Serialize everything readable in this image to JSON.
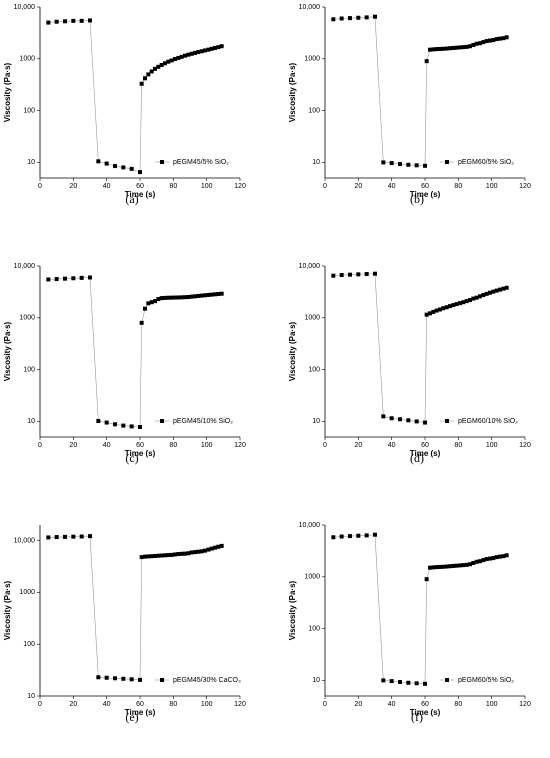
{
  "chart_data": [
    {
      "type": "scatter",
      "caption": "(a)",
      "xlabel": "Time (s)",
      "ylabel": "Viscosity (Pa·s)",
      "yscale": "log",
      "legend": "lower right",
      "xlim": [
        0,
        120
      ],
      "xticks": [
        0,
        20,
        40,
        60,
        80,
        100,
        120
      ],
      "ylim": [
        5,
        10000
      ],
      "yticks": [
        10,
        100,
        1000,
        {
          "value": 10000,
          "label": "10,000"
        }
      ],
      "x": [
        5,
        10,
        15,
        20,
        25,
        30,
        35,
        40,
        45,
        50,
        55,
        60,
        61,
        63,
        65,
        67,
        69,
        71,
        73,
        75,
        77,
        79,
        81,
        83,
        85,
        87,
        89,
        91,
        93,
        95,
        97,
        99,
        101,
        103,
        105,
        107,
        109
      ],
      "series": [
        {
          "name": "pEGM45/5% SiO₂",
          "color": "#000000",
          "values": [
            5000,
            5200,
            5300,
            5400,
            5400,
            5500,
            10.5,
            9.5,
            8.5,
            8,
            7.5,
            6.5,
            330,
            420,
            500,
            570,
            640,
            700,
            760,
            820,
            880,
            930,
            990,
            1040,
            1090,
            1150,
            1200,
            1250,
            1300,
            1350,
            1400,
            1450,
            1500,
            1560,
            1620,
            1680,
            1750
          ]
        }
      ]
    },
    {
      "type": "scatter",
      "caption": "(b)",
      "xlabel": "Time (s)",
      "ylabel": "Viscosity (Pa·s)",
      "yscale": "log",
      "legend": "lower right",
      "xlim": [
        0,
        120
      ],
      "xticks": [
        0,
        20,
        40,
        60,
        80,
        100,
        120
      ],
      "ylim": [
        5,
        10000
      ],
      "yticks": [
        10,
        100,
        1000,
        {
          "value": 10000,
          "label": "10,000"
        }
      ],
      "x": [
        5,
        10,
        15,
        20,
        25,
        30,
        35,
        40,
        45,
        50,
        55,
        60,
        61,
        63,
        65,
        67,
        69,
        71,
        73,
        75,
        77,
        79,
        81,
        83,
        85,
        87,
        89,
        91,
        93,
        95,
        97,
        99,
        101,
        103,
        105,
        107,
        109
      ],
      "series": [
        {
          "name": "pEGM60/5% SiO₂",
          "color": "#000000",
          "values": [
            5800,
            6000,
            6100,
            6200,
            6300,
            6500,
            10,
            9.7,
            9.3,
            9,
            8.8,
            8.6,
            900,
            1500,
            1520,
            1540,
            1550,
            1560,
            1580,
            1600,
            1620,
            1640,
            1660,
            1680,
            1700,
            1750,
            1850,
            1950,
            2000,
            2100,
            2200,
            2250,
            2300,
            2400,
            2450,
            2500,
            2600
          ]
        }
      ]
    },
    {
      "type": "scatter",
      "caption": "(c)",
      "xlabel": "Time (s)",
      "ylabel": "Viscosity (Pa·s)",
      "yscale": "log",
      "legend": "lower right",
      "xlim": [
        0,
        120
      ],
      "xticks": [
        0,
        20,
        40,
        60,
        80,
        100,
        120
      ],
      "ylim": [
        5,
        10000
      ],
      "yticks": [
        10,
        100,
        1000,
        {
          "value": 10000,
          "label": "10,000"
        }
      ],
      "x": [
        5,
        10,
        15,
        20,
        25,
        30,
        35,
        40,
        45,
        50,
        55,
        60,
        61,
        63,
        65,
        67,
        69,
        71,
        73,
        75,
        77,
        79,
        81,
        83,
        85,
        87,
        89,
        91,
        93,
        95,
        97,
        99,
        101,
        103,
        105,
        107,
        109
      ],
      "series": [
        {
          "name": "pEGM45/10% SiO₂",
          "color": "#000000",
          "values": [
            5500,
            5600,
            5700,
            5800,
            5900,
            6000,
            10.2,
            9.5,
            8.8,
            8.3,
            8,
            7.8,
            800,
            1500,
            1900,
            2000,
            2100,
            2300,
            2400,
            2420,
            2440,
            2450,
            2460,
            2470,
            2480,
            2500,
            2520,
            2560,
            2600,
            2640,
            2680,
            2720,
            2760,
            2800,
            2840,
            2880,
            2920
          ]
        }
      ]
    },
    {
      "type": "scatter",
      "caption": "(d)",
      "xlabel": "Time (s)",
      "ylabel": "Viscosity (Pa·s)",
      "yscale": "log",
      "legend": "lower right",
      "xlim": [
        0,
        120
      ],
      "xticks": [
        0,
        20,
        40,
        60,
        80,
        100,
        120
      ],
      "ylim": [
        5,
        10000
      ],
      "yticks": [
        10,
        100,
        1000,
        {
          "value": 10000,
          "label": "10,000"
        }
      ],
      "x": [
        5,
        10,
        15,
        20,
        25,
        30,
        35,
        40,
        45,
        50,
        55,
        60,
        61,
        63,
        65,
        67,
        69,
        71,
        73,
        75,
        77,
        79,
        81,
        83,
        85,
        87,
        89,
        91,
        93,
        95,
        97,
        99,
        101,
        103,
        105,
        107,
        109
      ],
      "series": [
        {
          "name": "pEGM60/10% SiO₂",
          "color": "#000000",
          "values": [
            6500,
            6700,
            6800,
            6900,
            7000,
            7100,
            12.5,
            11.5,
            11,
            10.5,
            10,
            9.5,
            1150,
            1220,
            1300,
            1380,
            1450,
            1530,
            1600,
            1680,
            1760,
            1840,
            1920,
            2000,
            2100,
            2200,
            2350,
            2450,
            2600,
            2750,
            2900,
            3050,
            3200,
            3350,
            3500,
            3650,
            3800
          ]
        }
      ]
    },
    {
      "type": "scatter",
      "caption": "(e)",
      "xlabel": "Time (s)",
      "ylabel": "Viscosity (Pa·s)",
      "yscale": "log",
      "legend": "lower right",
      "xlim": [
        0,
        120
      ],
      "xticks": [
        0,
        20,
        40,
        60,
        80,
        100,
        120
      ],
      "ylim": [
        10,
        20000
      ],
      "yticks": [
        10,
        100,
        1000,
        {
          "value": 10000,
          "label": "10,000"
        }
      ],
      "x": [
        5,
        10,
        15,
        20,
        25,
        30,
        35,
        40,
        45,
        50,
        55,
        60,
        61,
        63,
        65,
        67,
        69,
        71,
        73,
        75,
        77,
        79,
        81,
        83,
        85,
        87,
        89,
        91,
        93,
        95,
        97,
        99,
        101,
        103,
        105,
        107,
        109
      ],
      "series": [
        {
          "name": "pEGM45/30% CaCO₃",
          "color": "#000000",
          "values": [
            11500,
            11700,
            11800,
            11900,
            12000,
            12200,
            23,
            22.5,
            22,
            21.5,
            21,
            20.5,
            4800,
            4900,
            4950,
            5000,
            5050,
            5100,
            5150,
            5200,
            5250,
            5300,
            5400,
            5500,
            5550,
            5600,
            5700,
            5900,
            6000,
            6100,
            6200,
            6400,
            6700,
            7000,
            7300,
            7600,
            7900
          ]
        }
      ]
    },
    {
      "type": "scatter",
      "caption": "(f)",
      "xlabel": "Time (s)",
      "ylabel": "Viscosity (Pa·s)",
      "yscale": "log",
      "legend": "lower right",
      "xlim": [
        0,
        120
      ],
      "xticks": [
        0,
        20,
        40,
        60,
        80,
        100,
        120
      ],
      "ylim": [
        5,
        10000
      ],
      "yticks": [
        10,
        100,
        1000,
        {
          "value": 10000,
          "label": "10,000"
        }
      ],
      "x": [
        5,
        10,
        15,
        20,
        25,
        30,
        35,
        40,
        45,
        50,
        55,
        60,
        61,
        63,
        65,
        67,
        69,
        71,
        73,
        75,
        77,
        79,
        81,
        83,
        85,
        87,
        89,
        91,
        93,
        95,
        97,
        99,
        101,
        103,
        105,
        107,
        109
      ],
      "series": [
        {
          "name": "pEGM60/5% SiO₂",
          "color": "#000000",
          "values": [
            5800,
            6000,
            6100,
            6200,
            6300,
            6500,
            10,
            9.7,
            9.3,
            9,
            8.8,
            8.6,
            900,
            1500,
            1520,
            1540,
            1550,
            1560,
            1580,
            1600,
            1620,
            1640,
            1660,
            1680,
            1700,
            1750,
            1850,
            1950,
            2000,
            2100,
            2200,
            2250,
            2300,
            2400,
            2450,
            2500,
            2600
          ]
        }
      ]
    }
  ]
}
